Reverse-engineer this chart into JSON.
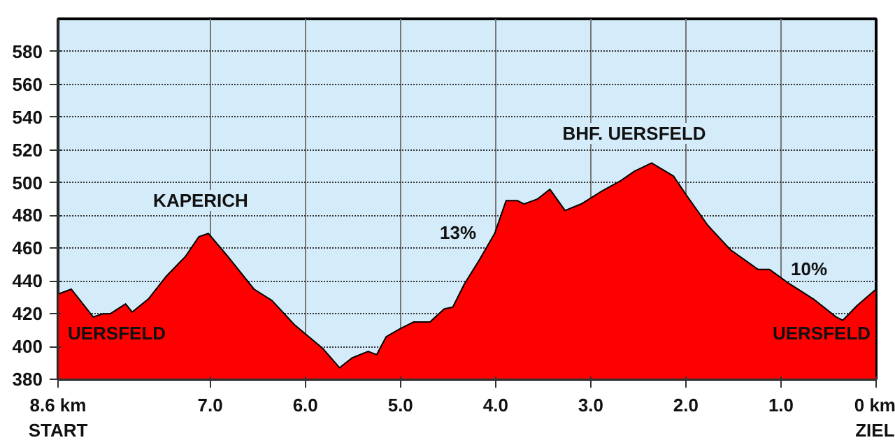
{
  "chart_data": {
    "type": "area",
    "color": "#ff0000",
    "x": [
      8.6,
      8.46,
      8.23,
      8.13,
      8.05,
      7.89,
      7.82,
      7.65,
      7.46,
      7.26,
      7.12,
      7.02,
      6.83,
      6.54,
      6.35,
      6.11,
      5.82,
      5.64,
      5.51,
      5.34,
      5.25,
      5.15,
      5.0,
      4.86,
      4.69,
      4.54,
      4.45,
      4.33,
      4.18,
      4.01,
      3.89,
      3.77,
      3.7,
      3.56,
      3.43,
      3.27,
      3.1,
      2.88,
      2.69,
      2.54,
      2.36,
      2.13,
      1.99,
      1.77,
      1.53,
      1.24,
      1.12,
      0.93,
      0.66,
      0.42,
      0.35,
      0.2,
      0.0
    ],
    "values": [
      432,
      435,
      418,
      420,
      420,
      426,
      421,
      429,
      443,
      455,
      467,
      469,
      456,
      435,
      428,
      413,
      399,
      387,
      393,
      397,
      395,
      406,
      411,
      415,
      415,
      423,
      424,
      438,
      452,
      469,
      489,
      489,
      487,
      490,
      496,
      483,
      487,
      495,
      501,
      507,
      512,
      504,
      492,
      474,
      459,
      447,
      447,
      439,
      429,
      418,
      416,
      425,
      435
    ],
    "xlim": [
      8.6,
      0
    ],
    "xticks": [
      {
        "value": 8.6,
        "label": "8.6 km\nSTART"
      },
      {
        "value": 7,
        "label": "7.0"
      },
      {
        "value": 6,
        "label": "6.0"
      },
      {
        "value": 5,
        "label": "5.0"
      },
      {
        "value": 4,
        "label": "4.0"
      },
      {
        "value": 3,
        "label": "3.0"
      },
      {
        "value": 2,
        "label": "2.0"
      },
      {
        "value": 1,
        "label": "1.0"
      },
      {
        "value": 0,
        "label": "0 km\nZIEL"
      }
    ],
    "ylim": [
      380,
      600
    ],
    "yticks": [
      380,
      400,
      420,
      440,
      460,
      480,
      500,
      520,
      540,
      560,
      580
    ],
    "grid": true,
    "annotations": [
      "KAPERICH",
      "UERSFELD",
      "13%",
      "BHF. UERSFELD",
      "10%",
      "UERSFELD"
    ]
  }
}
